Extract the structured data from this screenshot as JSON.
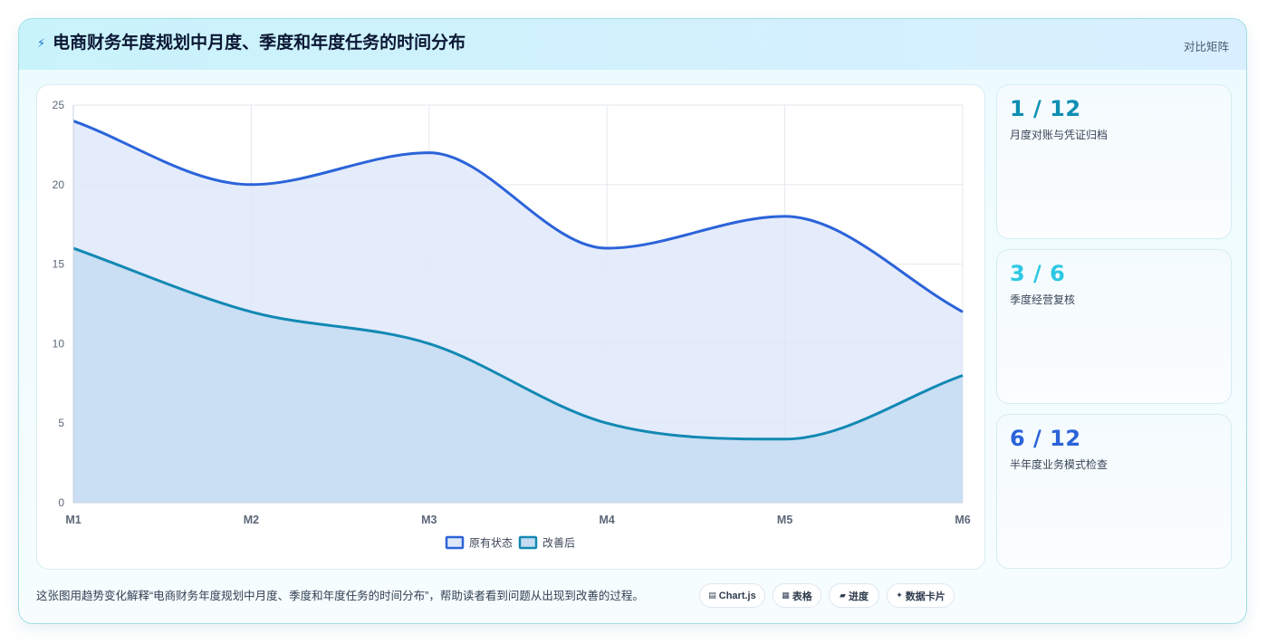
{
  "header": {
    "icon": "lightning-bolt-icon",
    "title": "电商财务年度规划中月度、季度和年度任务的时间分布",
    "right_label": "对比矩阵"
  },
  "chart_data": {
    "type": "area",
    "x": [
      "M1",
      "M2",
      "M3",
      "M4",
      "M5",
      "M6"
    ],
    "ylim": [
      0,
      25
    ],
    "yticks": [
      0,
      5,
      10,
      15,
      20,
      25
    ],
    "grid": true,
    "smooth": true,
    "legend_position": "bottom",
    "series": [
      {
        "name": "原有状态",
        "values": [
          24,
          20,
          22,
          16,
          18,
          12
        ],
        "color": "#2b63d9",
        "fill": "#dfe8fa"
      },
      {
        "name": "改善后",
        "values": [
          16,
          12,
          10,
          5,
          4,
          8
        ],
        "color": "#1289b3",
        "fill": "#c6dcf2"
      }
    ]
  },
  "stats": [
    {
      "value": "1 / 12",
      "label": "月度对账与凭证归档",
      "color": "#0e8fb4"
    },
    {
      "value": "3 / 6",
      "label": "季度经营复核",
      "color": "#2bc8e3"
    },
    {
      "value": "6 / 12",
      "label": "半年度业务模式检查",
      "color": "#2b63d9"
    }
  ],
  "caption": "这张图用趋势变化解释“电商财务年度规划中月度、季度和年度任务的时间分布”，帮助读者看到问题从出现到改善的过程。",
  "pills": [
    {
      "icon": "▤",
      "label": "Chart.js"
    },
    {
      "icon": "▦",
      "label": "表格"
    },
    {
      "icon": "▰",
      "label": "进度"
    },
    {
      "icon": "✦",
      "label": "数据卡片"
    }
  ]
}
